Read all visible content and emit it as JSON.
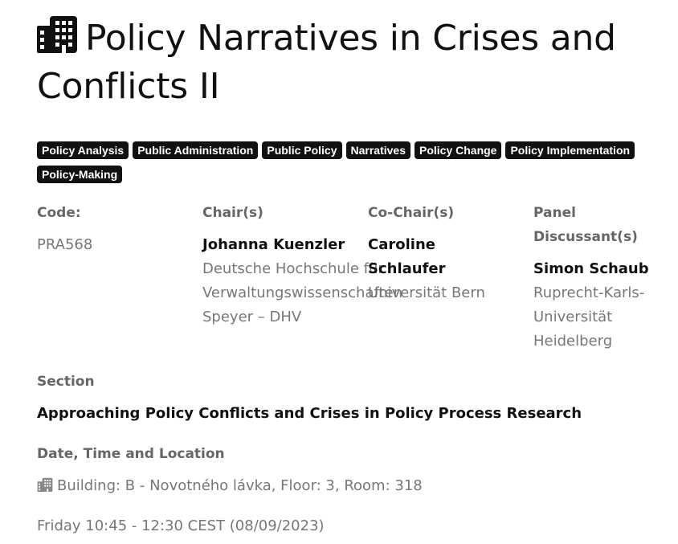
{
  "title": "Policy Narratives in Crises and Conflicts II",
  "icons": {
    "title_icon": "building-icon",
    "location_icon": "building-icon"
  },
  "tags": [
    "Policy Analysis",
    "Public Administration",
    "Public Policy",
    "Narratives",
    "Policy Change",
    "Policy Implementation",
    "Policy-Making"
  ],
  "info": {
    "code": {
      "label": "Code:",
      "value": "PRA568"
    },
    "chairs": {
      "label": "Chair(s)",
      "name": "Johanna Kuenzler",
      "affiliation": "Deutsche Hochschule für Verwaltungswissenschaften Speyer – DHV"
    },
    "cochairs": {
      "label": "Co-Chair(s)",
      "name": "Caroline Schlaufer",
      "affiliation": "Universität Bern"
    },
    "discussants": {
      "label": "Panel Discussant(s)",
      "name": "Simon Schaub",
      "affiliation": "Ruprecht-Karls-Universität Heidelberg"
    }
  },
  "section": {
    "label": "Section",
    "value": "Approaching Policy Conflicts and Crises in Policy Process Research"
  },
  "schedule": {
    "label": "Date, Time and Location",
    "location": "Building: B - Novotného lávka, Floor: 3, Room: 318",
    "datetime": "Friday 10:45 - 12:30 CEST (08/09/2023)"
  },
  "colors": {
    "tag_bg": "#111111",
    "tag_text": "#ffffff",
    "muted": "#777777",
    "label": "#666666"
  }
}
